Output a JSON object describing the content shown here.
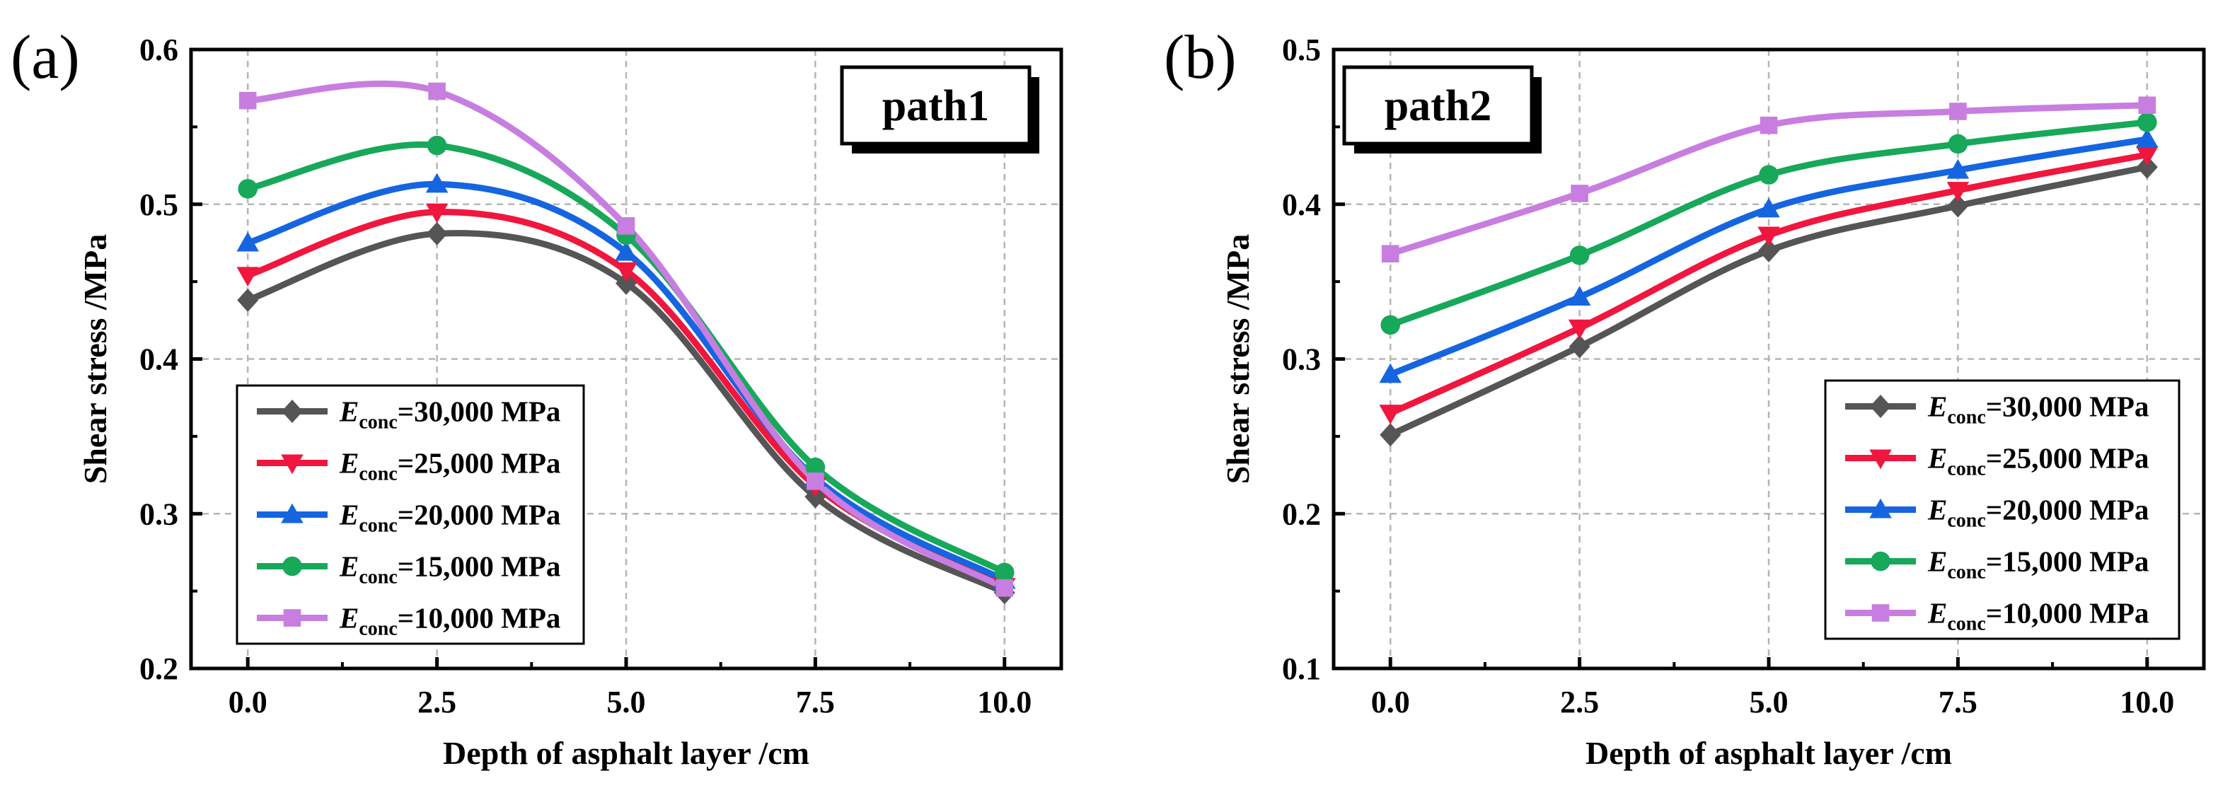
{
  "chart_data": [
    {
      "panel_label": "(a)",
      "type": "line",
      "tag": "path1",
      "xlabel": "Depth of asphalt layer /cm",
      "ylabel": "Shear stress /MPa",
      "xlim": [
        -0.75,
        10.75
      ],
      "ylim": [
        0.2,
        0.6
      ],
      "x": [
        0.0,
        2.5,
        5.0,
        7.5,
        10.0
      ],
      "xticks": [
        "0.0",
        "2.5",
        "5.0",
        "7.5",
        "10.0"
      ],
      "yticks": [
        "0.2",
        "0.3",
        "0.4",
        "0.5",
        "0.6"
      ],
      "grid": true,
      "legend_position": "lower-left",
      "series": [
        {
          "name_prefix": "E",
          "name_sub": "conc",
          "name_suffix": "=30,000 MPa",
          "color": "#555555",
          "marker": "diamond",
          "values": [
            0.438,
            0.481,
            0.449,
            0.311,
            0.249
          ]
        },
        {
          "name_prefix": "E",
          "name_sub": "conc",
          "name_suffix": "=25,000 MPa",
          "color": "#f0163e",
          "marker": "triangle-down",
          "values": [
            0.454,
            0.495,
            0.457,
            0.318,
            0.253
          ]
        },
        {
          "name_prefix": "E",
          "name_sub": "conc",
          "name_suffix": "=20,000 MPa",
          "color": "#1565e0",
          "marker": "triangle-up",
          "values": [
            0.475,
            0.513,
            0.469,
            0.323,
            0.257
          ]
        },
        {
          "name_prefix": "E",
          "name_sub": "conc",
          "name_suffix": "=15,000 MPa",
          "color": "#17a85a",
          "marker": "circle",
          "values": [
            0.51,
            0.538,
            0.48,
            0.33,
            0.262
          ]
        },
        {
          "name_prefix": "E",
          "name_sub": "conc",
          "name_suffix": "=10,000 MPa",
          "color": "#c77ee0",
          "marker": "square",
          "values": [
            0.567,
            0.573,
            0.486,
            0.321,
            0.252
          ]
        }
      ]
    },
    {
      "panel_label": "(b)",
      "type": "line",
      "tag": "path2",
      "xlabel": "Depth of asphalt layer /cm",
      "ylabel": "Shear stress /MPa",
      "xlim": [
        -0.75,
        10.75
      ],
      "ylim": [
        0.1,
        0.5
      ],
      "x": [
        0.0,
        2.5,
        5.0,
        7.5,
        10.0
      ],
      "xticks": [
        "0.0",
        "2.5",
        "5.0",
        "7.5",
        "10.0"
      ],
      "yticks": [
        "0.1",
        "0.2",
        "0.3",
        "0.4",
        "0.5"
      ],
      "grid": true,
      "legend_position": "lower-right",
      "series": [
        {
          "name_prefix": "E",
          "name_sub": "conc",
          "name_suffix": "=30,000 MPa",
          "color": "#555555",
          "marker": "diamond",
          "values": [
            0.251,
            0.308,
            0.37,
            0.399,
            0.424
          ]
        },
        {
          "name_prefix": "E",
          "name_sub": "conc",
          "name_suffix": "=25,000 MPa",
          "color": "#f0163e",
          "marker": "triangle-down",
          "values": [
            0.265,
            0.32,
            0.38,
            0.409,
            0.432
          ]
        },
        {
          "name_prefix": "E",
          "name_sub": "conc",
          "name_suffix": "=20,000 MPa",
          "color": "#1565e0",
          "marker": "triangle-up",
          "values": [
            0.29,
            0.34,
            0.397,
            0.422,
            0.442
          ]
        },
        {
          "name_prefix": "E",
          "name_sub": "conc",
          "name_suffix": "=15,000 MPa",
          "color": "#17a85a",
          "marker": "circle",
          "values": [
            0.322,
            0.367,
            0.419,
            0.439,
            0.453
          ]
        },
        {
          "name_prefix": "E",
          "name_sub": "conc",
          "name_suffix": "=10,000 MPa",
          "color": "#c77ee0",
          "marker": "square",
          "values": [
            0.368,
            0.407,
            0.451,
            0.46,
            0.464
          ]
        }
      ]
    }
  ]
}
